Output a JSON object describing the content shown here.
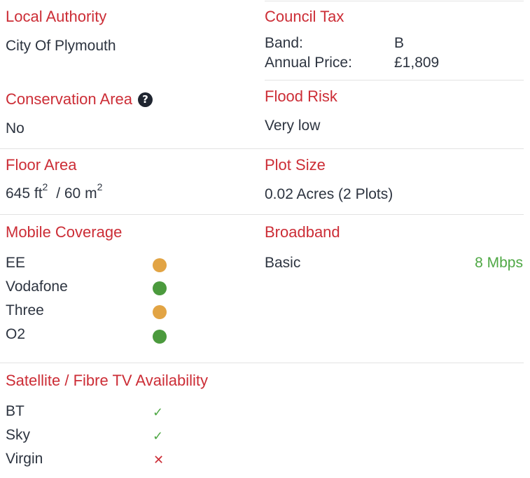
{
  "local_authority": {
    "title": "Local Authority",
    "value": "City Of Plymouth"
  },
  "council_tax": {
    "title": "Council Tax",
    "band_label": "Band:",
    "band_value": "B",
    "price_label": "Annual Price:",
    "price_value": "£1,809"
  },
  "conservation_area": {
    "title": "Conservation Area",
    "info_icon": "question-circle-icon",
    "value": "No"
  },
  "flood_risk": {
    "title": "Flood Risk",
    "value": "Very low"
  },
  "floor_area": {
    "title": "Floor Area",
    "imperial_value": "645 ft",
    "imperial_exp": "2",
    "sep": "/",
    "metric_value": "60 m",
    "metric_exp": "2"
  },
  "plot_size": {
    "title": "Plot Size",
    "value": "0.02 Acres (2 Plots)"
  },
  "mobile_coverage": {
    "title": "Mobile Coverage",
    "providers": [
      {
        "name": "EE",
        "status": "partial",
        "color": "#e2a444"
      },
      {
        "name": "Vodafone",
        "status": "good",
        "color": "#4b9a3d"
      },
      {
        "name": "Three",
        "status": "partial",
        "color": "#e2a444"
      },
      {
        "name": "O2",
        "status": "good",
        "color": "#4b9a3d"
      }
    ]
  },
  "broadband": {
    "title": "Broadband",
    "type": "Basic",
    "speed": "8 Mbps",
    "speed_color": "#4fa845"
  },
  "tv_availability": {
    "title": "Satellite / Fibre TV Availability",
    "providers": [
      {
        "name": "BT",
        "available": true,
        "icon": "check-icon",
        "color": "#4fa845"
      },
      {
        "name": "Sky",
        "available": true,
        "icon": "check-icon",
        "color": "#4fa845"
      },
      {
        "name": "Virgin",
        "available": false,
        "icon": "cross-icon",
        "color": "#cc2d36"
      }
    ]
  },
  "colors": {
    "heading": "#cc2d36",
    "text": "#2d3440",
    "divider": "#e3e3e3"
  }
}
